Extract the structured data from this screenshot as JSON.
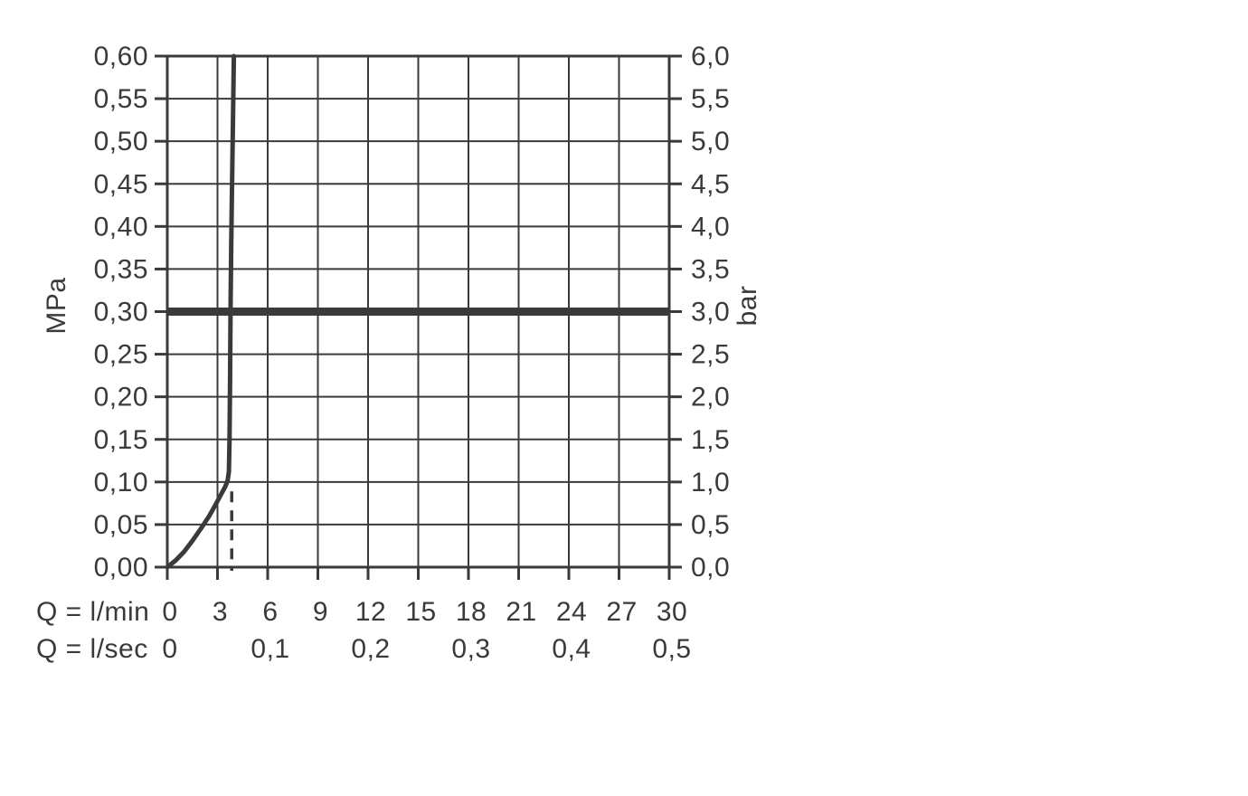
{
  "chart_data": {
    "type": "line",
    "title": "",
    "description": "Flow rate vs pressure diagram",
    "colors": {
      "ink": "#3a3a39",
      "background": "#ffffff"
    },
    "y_axis_left": {
      "unit": "MPa",
      "range": [
        0,
        0.6
      ],
      "step": 0.05,
      "tick_labels": [
        "0,00",
        "0,05",
        "0,10",
        "0,15",
        "0,20",
        "0,25",
        "0,30",
        "0,35",
        "0,40",
        "0,45",
        "0,50",
        "0,55",
        "0,60"
      ]
    },
    "y_axis_right": {
      "unit": "bar",
      "range": [
        0,
        6
      ],
      "step": 0.5,
      "tick_labels": [
        "0,0",
        "0,5",
        "1,0",
        "1,5",
        "2,0",
        "2,5",
        "3,0",
        "3,5",
        "4,0",
        "4,5",
        "5,0",
        "5,5",
        "6,0"
      ]
    },
    "x_axis": {
      "range": [
        0,
        30
      ],
      "grid_step": 3,
      "row_lmin": {
        "label": "Q = l/min",
        "ticks": [
          {
            "pos": 0,
            "label": "0"
          },
          {
            "pos": 3,
            "label": "3"
          },
          {
            "pos": 6,
            "label": "6"
          },
          {
            "pos": 9,
            "label": "9"
          },
          {
            "pos": 12,
            "label": "12"
          },
          {
            "pos": 15,
            "label": "15"
          },
          {
            "pos": 18,
            "label": "18"
          },
          {
            "pos": 21,
            "label": "21"
          },
          {
            "pos": 24,
            "label": "24"
          },
          {
            "pos": 27,
            "label": "27"
          },
          {
            "pos": 30,
            "label": "30"
          }
        ]
      },
      "row_lsec": {
        "label": "Q = l/sec",
        "ticks": [
          {
            "pos": 0,
            "label": "0"
          },
          {
            "pos": 6,
            "label": "0,1"
          },
          {
            "pos": 12,
            "label": "0,2"
          },
          {
            "pos": 18,
            "label": "0,3"
          },
          {
            "pos": 24,
            "label": "0,4"
          },
          {
            "pos": 30,
            "label": "0,5"
          }
        ]
      }
    },
    "series": [
      {
        "name": "flow-curve",
        "points": [
          [
            0,
            0
          ],
          [
            0.5,
            0.008
          ],
          [
            1.0,
            0.018
          ],
          [
            1.5,
            0.031
          ],
          [
            2.0,
            0.045
          ],
          [
            2.5,
            0.06
          ],
          [
            2.9,
            0.074
          ],
          [
            3.2,
            0.085
          ],
          [
            3.45,
            0.094
          ],
          [
            3.6,
            0.101
          ],
          [
            3.68,
            0.112
          ],
          [
            3.72,
            0.15
          ],
          [
            3.75,
            0.22
          ],
          [
            3.78,
            0.3
          ],
          [
            3.82,
            0.38
          ],
          [
            3.87,
            0.45
          ],
          [
            3.93,
            0.53
          ],
          [
            3.98,
            0.6
          ]
        ]
      }
    ],
    "reference_line": {
      "value_mpa": 0.3,
      "value_bar": 3.0
    },
    "dashed_indicator": {
      "x_lmin": 3.85,
      "y_top_mpa": 0.089
    },
    "legend": {
      "visible": false
    },
    "grid": "on"
  }
}
